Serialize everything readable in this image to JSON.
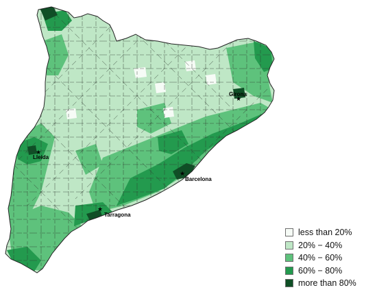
{
  "map": {
    "cities": [
      {
        "name": "Lleida"
      },
      {
        "name": "Barcelona"
      },
      {
        "name": "Tarragona"
      },
      {
        "name": "Girona"
      }
    ]
  },
  "legend": {
    "items": [
      {
        "label": "less than 20%",
        "color": "#f6fbf6"
      },
      {
        "label": "20% − 40%",
        "color": "#bfe7c6"
      },
      {
        "label": "40% − 60%",
        "color": "#5ec27c"
      },
      {
        "label": "60% − 80%",
        "color": "#239a4e"
      },
      {
        "label": "more than 80%",
        "color": "#0f4f26"
      }
    ]
  }
}
